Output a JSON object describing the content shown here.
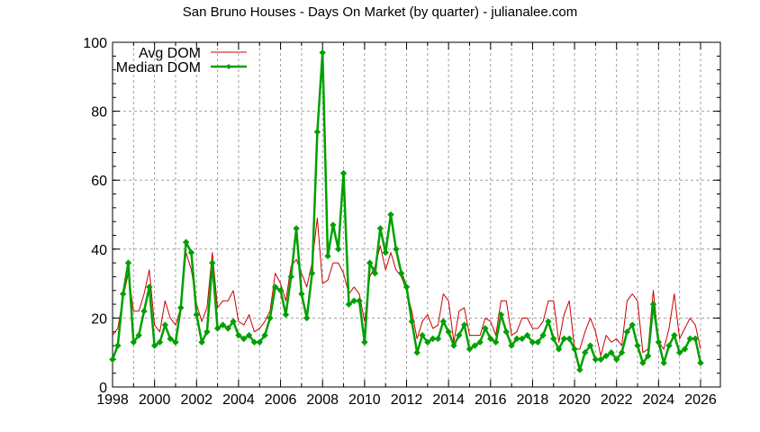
{
  "chart_data": {
    "type": "line",
    "title": "San Bruno Houses - Days On Market (by quarter) - julianalee.com",
    "xlabel": "",
    "ylabel": "",
    "xlim": [
      1998,
      2027
    ],
    "ylim": [
      0,
      100
    ],
    "grid": true,
    "legend_position": "top-left",
    "x_ticks": [
      1998,
      2000,
      2002,
      2004,
      2006,
      2008,
      2010,
      2012,
      2014,
      2016,
      2018,
      2020,
      2022,
      2024,
      2026
    ],
    "y_ticks": [
      0,
      20,
      40,
      60,
      80,
      100
    ],
    "x_start": 1998,
    "x_step": 0.25,
    "series": [
      {
        "name": "Avg DOM",
        "color": "#cc0000",
        "marker": false,
        "values": [
          15,
          17,
          26,
          33,
          22,
          22,
          27,
          34,
          18,
          16,
          25,
          20,
          18,
          23,
          39,
          34,
          24,
          19,
          23,
          39,
          23,
          25,
          25,
          28,
          19,
          18,
          21,
          16,
          17,
          19,
          22,
          33,
          30,
          25,
          35,
          37,
          33,
          29,
          36,
          49,
          30,
          31,
          36,
          36,
          33,
          27,
          29,
          27,
          19,
          32,
          35,
          41,
          34,
          39,
          34,
          32,
          28,
          22,
          14,
          19,
          21,
          17,
          18,
          27,
          25,
          13,
          22,
          23,
          15,
          15,
          15,
          20,
          19,
          15,
          25,
          25,
          15,
          16,
          20,
          20,
          17,
          17,
          19,
          25,
          25,
          13,
          21,
          25,
          11,
          11,
          16,
          20,
          16,
          9,
          15,
          13,
          14,
          12,
          25,
          27,
          25,
          10,
          11,
          28,
          13,
          11,
          17,
          27,
          14,
          17,
          20,
          18,
          11
        ]
      },
      {
        "name": "Median DOM",
        "color": "#00a000",
        "marker": true,
        "values": [
          8,
          12,
          27,
          36,
          13,
          15,
          22,
          29,
          12,
          13,
          18,
          14,
          13,
          23,
          42,
          39,
          21,
          13,
          16,
          36,
          17,
          18,
          17,
          19,
          15,
          14,
          15,
          13,
          13,
          15,
          20,
          29,
          28,
          21,
          32,
          46,
          27,
          20,
          33,
          74,
          97,
          38,
          47,
          40,
          62,
          24,
          25,
          25,
          13,
          36,
          33,
          46,
          39,
          50,
          40,
          33,
          29,
          19,
          10,
          15,
          13,
          14,
          14,
          19,
          16,
          12,
          15,
          18,
          11,
          12,
          13,
          17,
          14,
          13,
          21,
          16,
          12,
          14,
          14,
          15,
          13,
          13,
          15,
          19,
          14,
          11,
          14,
          14,
          11,
          5,
          10,
          12,
          8,
          8,
          9,
          10,
          8,
          10,
          16,
          18,
          12,
          7,
          9,
          24,
          13,
          7,
          12,
          15,
          10,
          11,
          14,
          14,
          7
        ]
      }
    ]
  }
}
